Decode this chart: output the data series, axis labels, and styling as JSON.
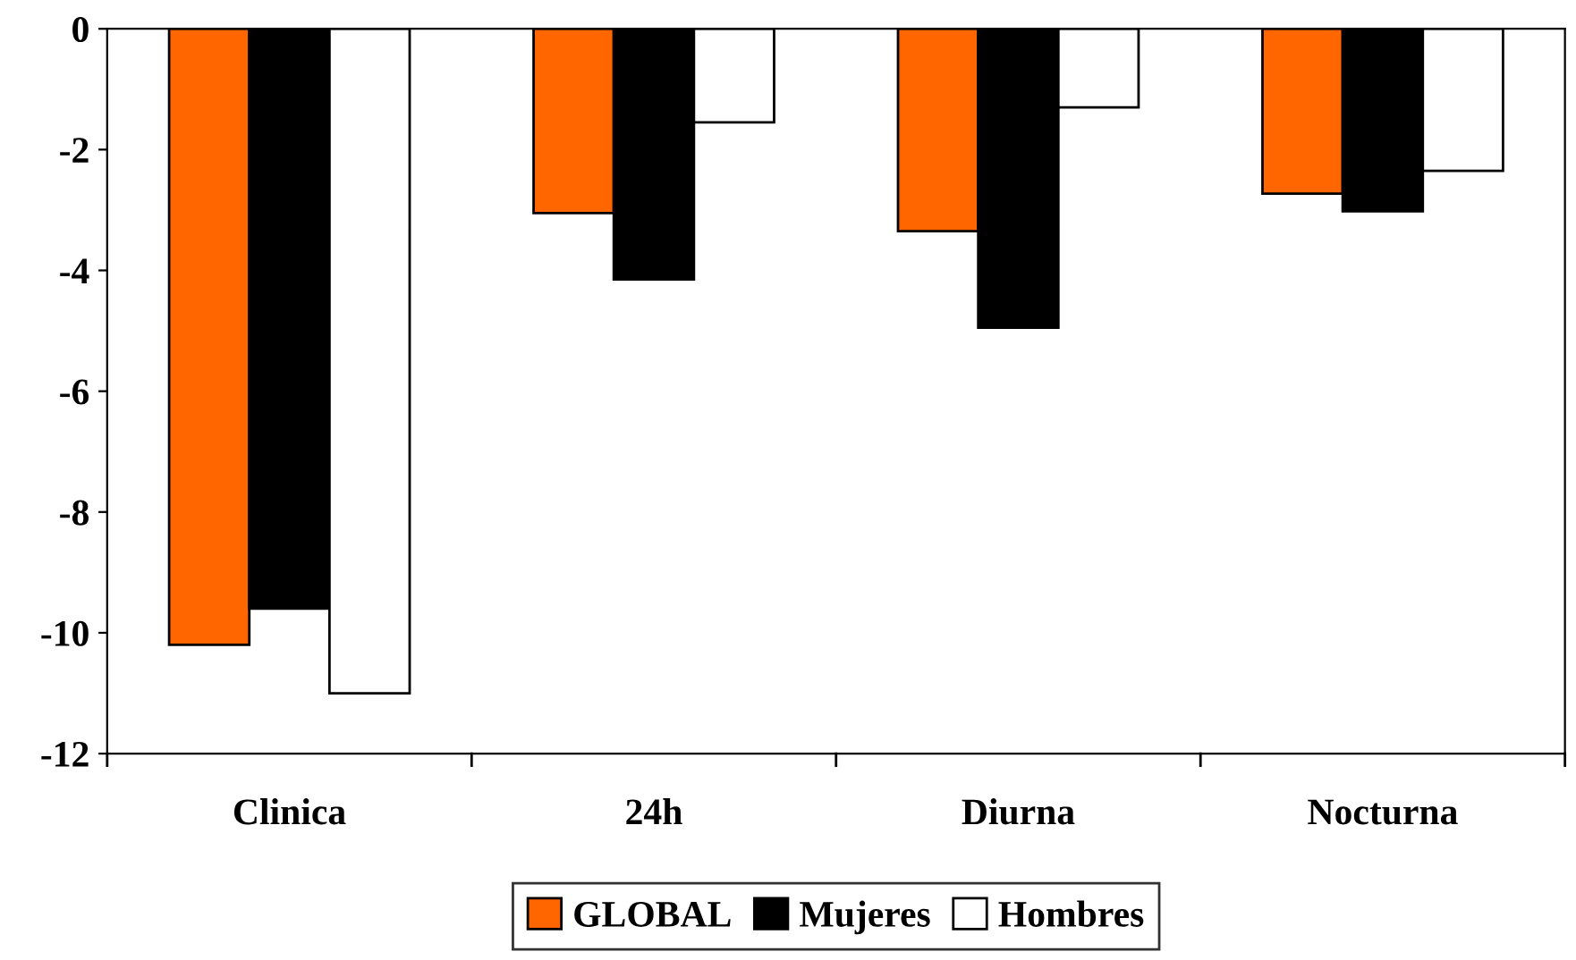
{
  "chart_data": {
    "type": "bar",
    "categories": [
      "Clinica",
      "24h",
      "Diurna",
      "Nocturna"
    ],
    "series": [
      {
        "name": "GLOBAL",
        "color": "#ff6600",
        "values": [
          -10.2,
          -3.05,
          -3.35,
          -2.73
        ]
      },
      {
        "name": "Mujeres",
        "color": "#000000",
        "values": [
          -9.6,
          -4.15,
          -4.95,
          -3.02
        ]
      },
      {
        "name": "Hombres",
        "color": "#ffffff",
        "values": [
          -11.0,
          -1.55,
          -1.3,
          -2.35
        ]
      }
    ],
    "ylim": [
      -12,
      0
    ],
    "yticks": [
      -12,
      -10,
      -8,
      -6,
      -4,
      -2,
      0
    ],
    "grid": false,
    "legend": "bottom"
  }
}
